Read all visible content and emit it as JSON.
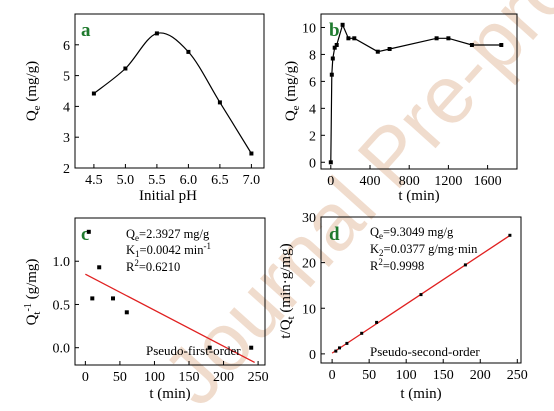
{
  "chart_data": [
    {
      "panel": "a",
      "type": "line",
      "xlabel": "Initial pH",
      "ylabel": "Qe (mg/g)",
      "xlim": [
        4.2,
        7.2
      ],
      "ylim": [
        2,
        7
      ],
      "xticks": [
        4.5,
        5.0,
        5.5,
        6.0,
        6.5,
        7.0
      ],
      "xtick_labels": [
        "4.5",
        "5.0",
        "5.5",
        "6.0",
        "6.5",
        "7.0"
      ],
      "yticks": [
        2,
        3,
        4,
        5,
        6
      ],
      "ytick_labels": [
        "2",
        "3",
        "4",
        "5",
        "6"
      ],
      "series": [
        {
          "x": [
            4.5,
            5.0,
            5.5,
            6.0,
            6.5,
            7.0
          ],
          "y": [
            4.42,
            5.23,
            6.37,
            5.77,
            4.13,
            2.47
          ]
        }
      ]
    },
    {
      "panel": "b",
      "type": "line",
      "xlabel": "t (min)",
      "ylabel": "Qe (mg/g)",
      "xlim": [
        -100,
        1900
      ],
      "ylim": [
        -0.5,
        11
      ],
      "xticks": [
        0,
        400,
        800,
        1200,
        1600
      ],
      "xtick_labels": [
        "0",
        "400",
        "800",
        "1200",
        "1600"
      ],
      "yticks": [
        0,
        2,
        4,
        6,
        8,
        10
      ],
      "ytick_labels": [
        "0",
        "2",
        "4",
        "6",
        "8",
        "10"
      ],
      "series": [
        {
          "x": [
            0,
            10,
            20,
            40,
            60,
            120,
            180,
            240,
            480,
            600,
            1080,
            1200,
            1440,
            1740
          ],
          "y": [
            0,
            6.5,
            7.7,
            8.5,
            8.7,
            10.2,
            9.2,
            9.2,
            8.2,
            8.4,
            9.2,
            9.2,
            8.7,
            8.7
          ]
        }
      ]
    },
    {
      "panel": "c",
      "type": "scatter",
      "xlabel": "t (min)",
      "ylabel": "Qt-1 (g/mg)",
      "xlim": [
        -15,
        260
      ],
      "ylim": [
        -0.2,
        1.5
      ],
      "xticks": [
        0,
        50,
        100,
        150,
        200,
        250
      ],
      "xtick_labels": [
        "0",
        "50",
        "100",
        "150",
        "200",
        "250"
      ],
      "yticks": [
        0.0,
        0.5,
        1.0
      ],
      "ytick_labels": [
        "0.0",
        "0.5",
        "1.0"
      ],
      "series": [
        {
          "x": [
            5,
            10,
            20,
            40,
            60,
            180,
            240
          ],
          "y": [
            1.34,
            0.57,
            0.93,
            0.57,
            0.41,
            0.0,
            0.0
          ]
        }
      ],
      "fit_line": {
        "x": [
          0,
          245
        ],
        "y": [
          0.85,
          -0.17
        ],
        "color": "#e02020"
      },
      "annotations": {
        "qe_sym": "Q",
        "qe_sub": "e",
        "qe_val": "=2.3927 mg/g",
        "k_sym": "K",
        "k_sub": "1",
        "k_val": "=0.0042 min",
        "k_sup": "-1",
        "r_sym": "R",
        "r_sup": "2",
        "r_val": "=0.6210",
        "model": "Pseudo-first-order"
      }
    },
    {
      "panel": "d",
      "type": "scatter",
      "xlabel": "t (min)",
      "ylabel": "t/Qt (min·g/mg)",
      "xlim": [
        -15,
        255
      ],
      "ylim": [
        -2,
        30
      ],
      "xticks": [
        0,
        50,
        100,
        150,
        200,
        250
      ],
      "xtick_labels": [
        "0",
        "50",
        "100",
        "150",
        "200",
        "250"
      ],
      "yticks": [
        0,
        10,
        20,
        30
      ],
      "ytick_labels": [
        "0",
        "10",
        "20",
        "30"
      ],
      "series": [
        {
          "x": [
            5,
            10,
            20,
            40,
            60,
            120,
            180,
            240
          ],
          "y": [
            0.6,
            1.3,
            2.3,
            4.5,
            6.9,
            13.0,
            19.5,
            26.0
          ]
        }
      ],
      "fit_line": {
        "x": [
          0,
          240
        ],
        "y": [
          0.16,
          25.95
        ],
        "color": "#e02020"
      },
      "annotations": {
        "qe_sym": "Q",
        "qe_sub": "e",
        "qe_val": "=9.3049 mg/g",
        "k_sym": "K",
        "k_sub": "2",
        "k_val": "=0.0377 g/mg·min",
        "r_sym": "R",
        "r_sup": "2",
        "r_val": "=0.9998",
        "model": "Pseudo-second-order"
      }
    }
  ],
  "labels": {
    "a": "a",
    "b": "b",
    "c": "c",
    "d": "d",
    "ya_q": "Q",
    "ya_sub": "e",
    "ya_unit": " (mg/g)",
    "yb_q": "Q",
    "yb_sub": "e",
    "yb_unit": " (mg/g)",
    "yc_q": "Q",
    "yc_sub": "t",
    "yc_sup": "-1",
    "yc_unit": " (g/mg)",
    "yd_pre": "t/Q",
    "yd_sub": "t",
    "yd_unit": " (min·g/mg)",
    "xa": "Initial pH",
    "xb": "t (min)",
    "xc": "t (min)",
    "xd": "t (min)",
    "watermark": "Journal Pre-proof"
  },
  "colors": {
    "fit": "#e02020",
    "label": "#1f7a2e",
    "watermark": "#f0dccd"
  }
}
